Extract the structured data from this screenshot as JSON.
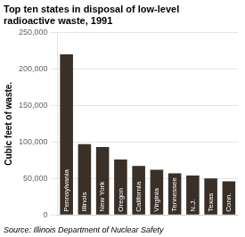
{
  "chart_data": {
    "type": "bar",
    "title": "Top ten states in disposal of low-level radioactive waste, 1991",
    "ylabel": "Cubic feet of waste.",
    "source": "Source: Illinois Department of Nuclear Safety",
    "categories": [
      "Pennsylvania",
      "Illinois",
      "New York",
      "Oregon",
      "California",
      "Virginia",
      "Tennessee",
      "N.J.",
      "Texas",
      "Conn."
    ],
    "values": [
      220000,
      97000,
      93000,
      76000,
      67000,
      62000,
      57000,
      54000,
      50000,
      46000
    ],
    "color": "#3a3028",
    "ylim": [
      0,
      250000
    ],
    "yticks": [
      0,
      {
        "value": 50000,
        "label": "50,000"
      },
      {
        "value": 100000,
        "label": "100,000"
      },
      {
        "value": 150000,
        "label": "150,000"
      },
      {
        "value": 200000,
        "label": "200,000"
      },
      {
        "value": 250000,
        "label": "250,000"
      }
    ],
    "grid": true,
    "tick_labels": "y"
  }
}
